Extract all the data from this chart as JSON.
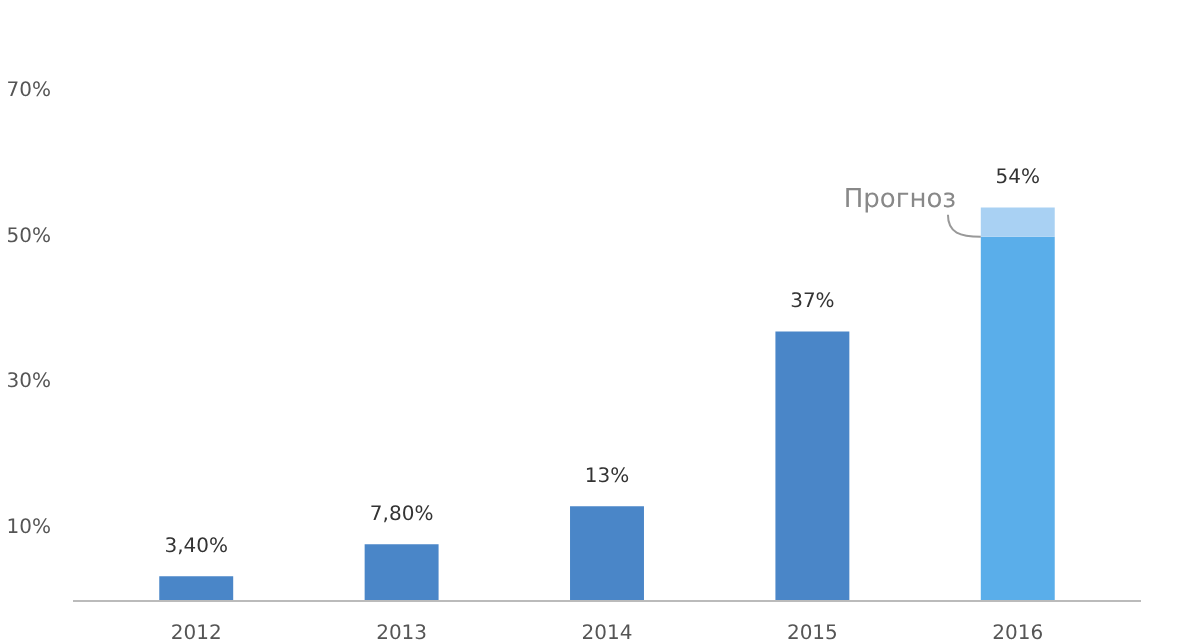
{
  "chart_data": {
    "type": "bar",
    "stacked": true,
    "categories": [
      "2012",
      "2013",
      "2014",
      "2015",
      "2016"
    ],
    "series": [
      {
        "colors": [
          "#4a86c8",
          "#4a86c8",
          "#4a86c8",
          "#4a86c8",
          "#5aaeea"
        ],
        "values": [
          3.4,
          7.8,
          13,
          37,
          50
        ]
      },
      {
        "color": "#a9d1f3",
        "values": [
          null,
          null,
          null,
          null,
          4
        ]
      }
    ],
    "totals": [
      "3,40%",
      "7,80%",
      "13%",
      "37%",
      "54%"
    ],
    "ylim": [
      0,
      70
    ],
    "yticks": [
      {
        "value": 10,
        "label": "10%"
      },
      {
        "value": 30,
        "label": "30%"
      },
      {
        "value": 50,
        "label": "50%"
      },
      {
        "value": 70,
        "label": "70%"
      }
    ],
    "grid": false,
    "annotations": [
      {
        "text": "Прогноз",
        "x": "2016",
        "y": 50
      }
    ]
  }
}
